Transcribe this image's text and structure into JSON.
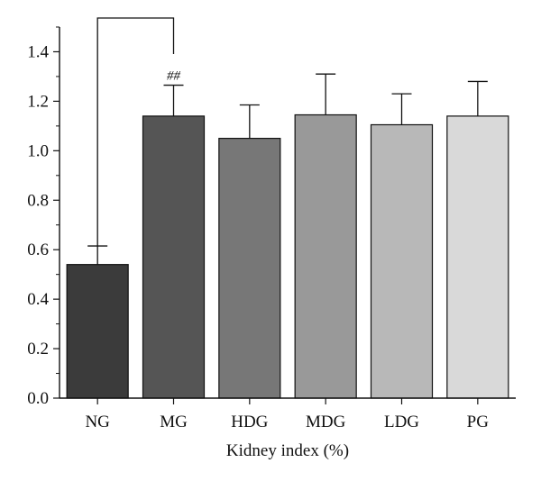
{
  "chart_data": {
    "type": "bar",
    "categories": [
      "NG",
      "MG",
      "HDG",
      "MDG",
      "LDG",
      "PG"
    ],
    "values": [
      0.54,
      1.14,
      1.05,
      1.145,
      1.105,
      1.14
    ],
    "errors": [
      0.075,
      0.125,
      0.135,
      0.165,
      0.125,
      0.14
    ],
    "colors": [
      "#3b3b3b",
      "#555555",
      "#777777",
      "#999999",
      "#b8b8b8",
      "#d9d9d9"
    ],
    "xlabel": "Kidney index (%)",
    "ylabel": "",
    "ylim": [
      0,
      1.5
    ],
    "yticks": [
      "0.0",
      "0.2",
      "0.4",
      "0.6",
      "0.8",
      "1.0",
      "1.2",
      "1.4"
    ],
    "annotation": {
      "text": "##",
      "category": "MG",
      "bracket_from": "NG",
      "bracket_to": "MG"
    },
    "grid": false
  }
}
